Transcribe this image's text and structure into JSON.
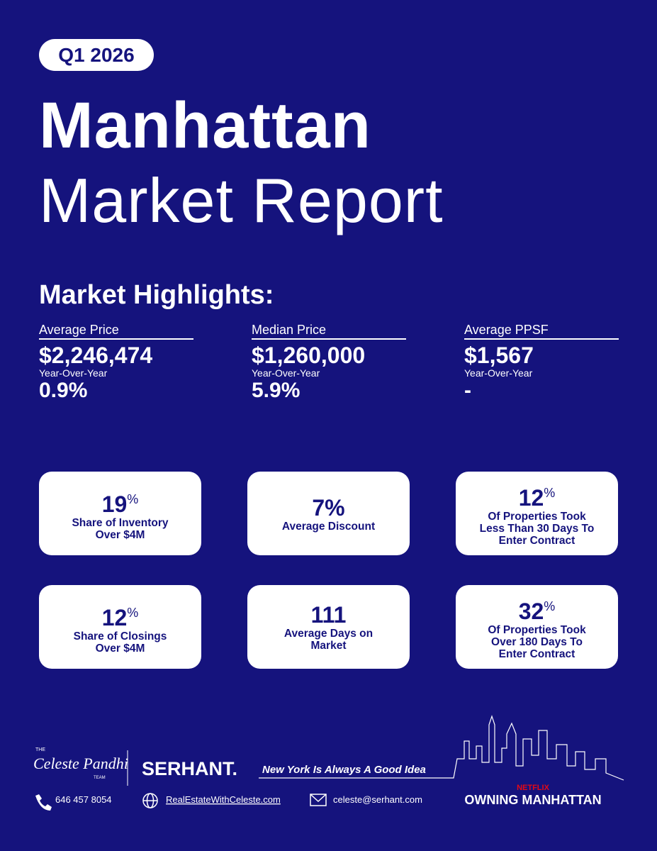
{
  "badge": "Q1 2026",
  "title": {
    "line1": "Manhattan",
    "line2": "Market Report"
  },
  "highlights": {
    "heading": "Market Highlights:",
    "items": [
      {
        "label": "Average Price",
        "value": "$2,246,474",
        "yoy_label": "Year-Over-Year",
        "yoy": "0.9%"
      },
      {
        "label": "Median Price",
        "value": "$1,260,000",
        "yoy_label": "Year-Over-Year",
        "yoy": "5.9%"
      },
      {
        "label": "Average PPSF",
        "value": "$1,567",
        "yoy_label": "Year-Over-Year",
        "yoy": "-"
      }
    ]
  },
  "stats": [
    {
      "number": "19",
      "unit": "%",
      "lines": [
        "Share of Inventory",
        "Over $4M"
      ]
    },
    {
      "number": "7%",
      "lines": [
        "Average Discount"
      ]
    },
    {
      "number": "12",
      "unit": "%",
      "lines": [
        "Of Properties Took",
        "Less Than 30 Days To",
        "Enter Contract"
      ]
    },
    {
      "number": "12",
      "unit": "%",
      "lines": [
        "Share of Closings",
        "Over $4M"
      ]
    },
    {
      "number": "111",
      "lines": [
        "Average Days on",
        "Market"
      ]
    },
    {
      "number": "32",
      "unit": "%",
      "lines": [
        "Of Properties Took",
        "Over 180 Days To",
        "Enter Contract"
      ]
    }
  ],
  "footer": {
    "team_prefix": "THE",
    "team_name": "Celeste Pandhi",
    "team_suffix": "TEAM",
    "brand": "SERHANT.",
    "tagline": "New York Is Always A Good Idea",
    "phone": "646 457 8054",
    "website": "RealEstateWithCeleste.com",
    "email": "celeste@serhant.com",
    "network": "NETFLIX",
    "show": "OWNING MANHATTAN"
  }
}
